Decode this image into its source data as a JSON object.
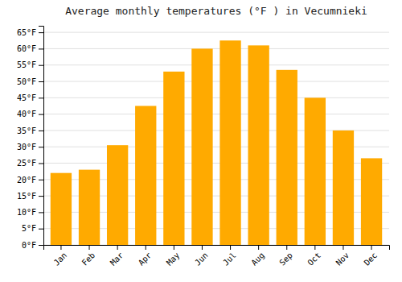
{
  "chart_data": {
    "type": "bar",
    "title": "Average monthly temperatures (°F ) in Vecumnieki",
    "categories": [
      "Jan",
      "Feb",
      "Mar",
      "Apr",
      "May",
      "Jun",
      "Jul",
      "Aug",
      "Sep",
      "Oct",
      "Nov",
      "Dec"
    ],
    "values": [
      22,
      23,
      30.5,
      42.5,
      53,
      60,
      62.5,
      61,
      53.5,
      45,
      35,
      26.5
    ],
    "color": "#FFAA00",
    "ylim": [
      0,
      67
    ],
    "yticks": [
      {
        "value": 0,
        "label": "0°F"
      },
      {
        "value": 5,
        "label": "5°F"
      },
      {
        "value": 10,
        "label": "10°F"
      },
      {
        "value": 15,
        "label": "15°F"
      },
      {
        "value": 20,
        "label": "20°F"
      },
      {
        "value": 25,
        "label": "25°F"
      },
      {
        "value": 30,
        "label": "30°F"
      },
      {
        "value": 35,
        "label": "35°F"
      },
      {
        "value": 40,
        "label": "40°F"
      },
      {
        "value": 45,
        "label": "45°F"
      },
      {
        "value": 50,
        "label": "50°F"
      },
      {
        "value": 55,
        "label": "55°F"
      },
      {
        "value": 60,
        "label": "60°F"
      },
      {
        "value": 65,
        "label": "65°F"
      }
    ],
    "grid": true
  }
}
